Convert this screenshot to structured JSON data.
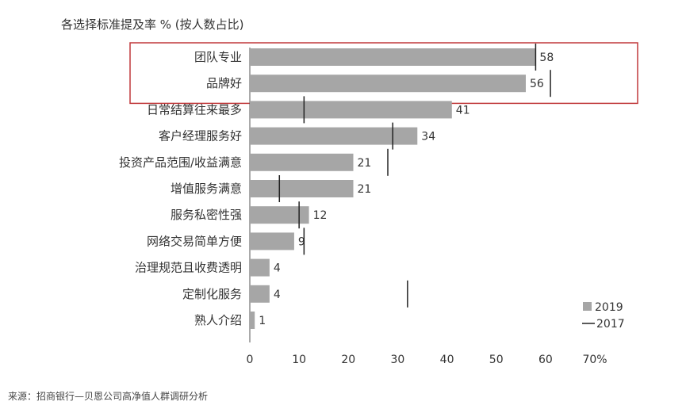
{
  "title": "各选择标准提及率 % (按人数占比)",
  "source": "来源：招商银行—贝恩公司高净值人群调研分析",
  "chart_data": {
    "type": "bar",
    "orientation": "horizontal",
    "title": "各选择标准提及率 % (按人数占比)",
    "categories": [
      "团队专业",
      "品牌好",
      "日常结算往来最多",
      "客户经理服务好",
      "投资产品范围/收益满意",
      "增值服务满意",
      "服务私密性强",
      "网络交易简单方便",
      "治理规范且收费透明",
      "定制化服务",
      "熟人介绍"
    ],
    "series": [
      {
        "name": "2019",
        "type": "bar",
        "color": "#a6a6a6",
        "values": [
          58,
          56,
          41,
          34,
          21,
          21,
          12,
          9,
          4,
          4,
          1
        ]
      },
      {
        "name": "2017",
        "type": "marker",
        "color": "#222222",
        "values": [
          58,
          61,
          11,
          29,
          28,
          6,
          10,
          11,
          null,
          32,
          null
        ]
      }
    ],
    "xlim": [
      0,
      70
    ],
    "xticks": [
      "0",
      "10",
      "20",
      "30",
      "40",
      "50",
      "60",
      "70%"
    ],
    "highlight_categories": [
      "团队专业",
      "品牌好"
    ],
    "highlight_color": "#c0393b",
    "legend_position": "bottom-right"
  }
}
